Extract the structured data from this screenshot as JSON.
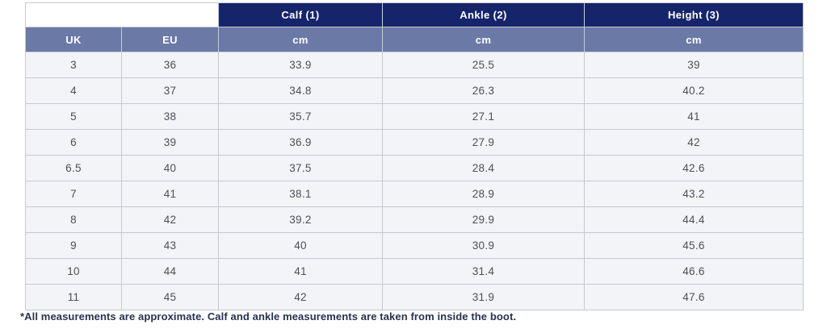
{
  "chart_data": {
    "type": "table",
    "group_headers": [
      "Calf (1)",
      "Ankle (2)",
      "Height (3)"
    ],
    "sub_headers": [
      "UK",
      "EU",
      "cm",
      "cm",
      "cm"
    ],
    "rows": [
      [
        "3",
        "36",
        "33.9",
        "25.5",
        "39"
      ],
      [
        "4",
        "37",
        "34.8",
        "26.3",
        "40.2"
      ],
      [
        "5",
        "38",
        "35.7",
        "27.1",
        "41"
      ],
      [
        "6",
        "39",
        "36.9",
        "27.9",
        "42"
      ],
      [
        "6.5",
        "40",
        "37.5",
        "28.4",
        "42.6"
      ],
      [
        "7",
        "41",
        "38.1",
        "28.9",
        "43.2"
      ],
      [
        "8",
        "42",
        "39.2",
        "29.9",
        "44.4"
      ],
      [
        "9",
        "43",
        "40",
        "30.9",
        "45.6"
      ],
      [
        "10",
        "44",
        "41",
        "31.4",
        "46.6"
      ],
      [
        "11",
        "45",
        "42",
        "31.9",
        "47.6"
      ]
    ],
    "footnote": "*All measurements are approximate. Calf and ankle measurements are taken from inside the boot.",
    "colors": {
      "group_header_bg": "#16256b",
      "sub_header_bg": "#6b79a7",
      "row_bg": "#f3f4f8",
      "cell_text": "#4b4f58",
      "header_text": "#ffffff",
      "footnote_text": "#273250",
      "border": "#c6c9d1"
    }
  }
}
